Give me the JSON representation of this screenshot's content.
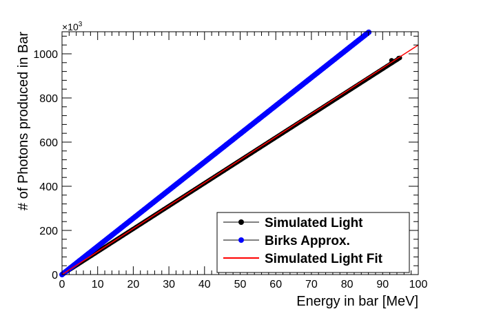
{
  "chart_data": {
    "type": "scatter",
    "title": "",
    "xlabel": "Energy in bar [MeV]",
    "ylabel": "# of Photons produced in Bar",
    "y_multiplier_label": "×10",
    "y_multiplier_exp": "3",
    "xlim": [
      0,
      100
    ],
    "ylim": [
      0,
      1100
    ],
    "x_ticks": [
      0,
      10,
      20,
      30,
      40,
      50,
      60,
      70,
      80,
      90,
      100
    ],
    "y_ticks": [
      0,
      200,
      400,
      600,
      800,
      1000
    ],
    "grid": false,
    "legend_position": "bottom-right",
    "series": [
      {
        "name": "Simulated Light",
        "kind": "markers",
        "color": "#000000",
        "slope": 10.35,
        "x_range": [
          0,
          95
        ],
        "highlight_points": [
          {
            "x": 92.5,
            "y": 970
          },
          {
            "x": 94.5,
            "y": 980
          }
        ]
      },
      {
        "name": "Birks Approx.",
        "kind": "markers",
        "color": "#0000ff",
        "slope": 12.75,
        "x_range": [
          0,
          86.3
        ]
      },
      {
        "name": "Simulated Light Fit",
        "kind": "line",
        "color": "#ff0000",
        "slope": 10.4,
        "x_range": [
          0,
          100
        ]
      }
    ]
  }
}
